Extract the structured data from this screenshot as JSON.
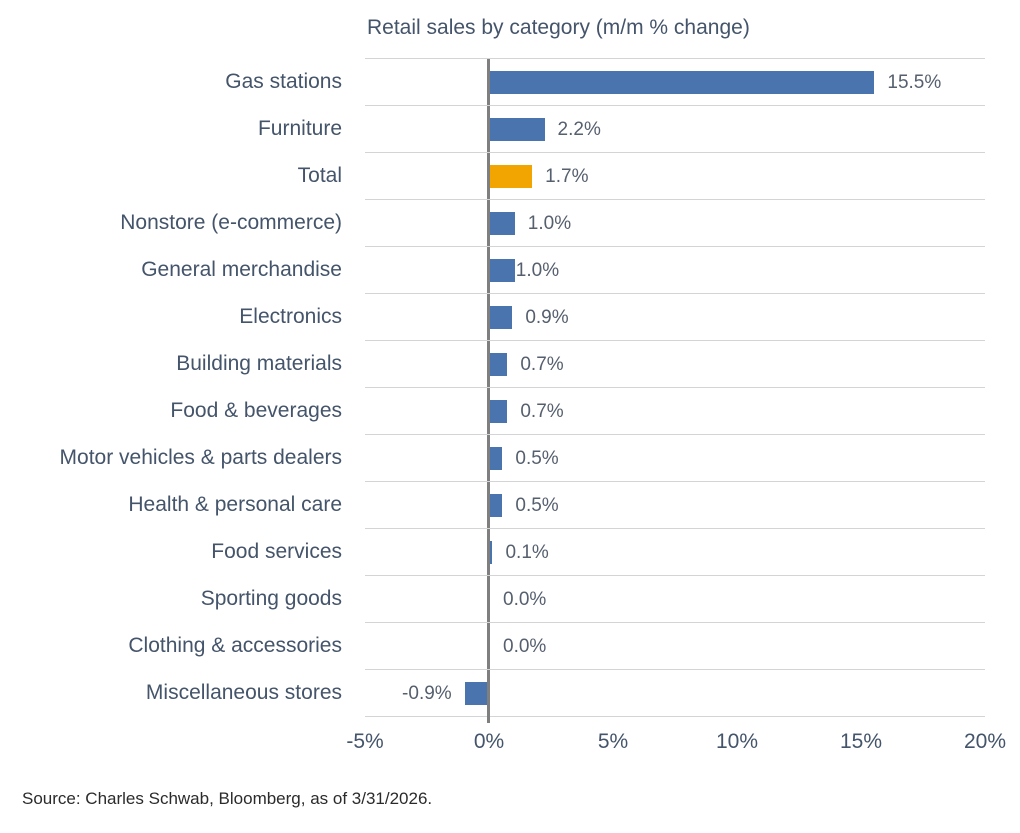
{
  "title": "Retail sales by category (m/m % change)",
  "source": "Source: Charles Schwab, Bloomberg, as of 3/31/2026.",
  "colors": {
    "bar_blue": "#4a74ad",
    "bar_highlight_orange": "#f2a500",
    "axis_text": "#44546a",
    "value_text": "#555f6e",
    "gridline": "#d2d4d6",
    "zero_line": "#7f7f7f"
  },
  "chart_data": {
    "type": "bar",
    "orientation": "horizontal",
    "title": "Retail sales by category (m/m % change)",
    "xlim": [
      -5,
      20
    ],
    "x_ticks": [
      "-5%",
      "0%",
      "5%",
      "10%",
      "15%",
      "20%"
    ],
    "x_tick_values": [
      -5,
      0,
      5,
      10,
      15,
      20
    ],
    "legend": "none",
    "grid": "horizontal row separator lines, gray vertical zero axis",
    "rows": [
      {
        "category": "Gas stations",
        "value": 15.5,
        "label": "15.5%"
      },
      {
        "category": "Furniture",
        "value": 2.2,
        "label": "2.2%"
      },
      {
        "category": "Total",
        "value": 1.7,
        "label": "1.7%",
        "highlight": true
      },
      {
        "category": "Nonstore (e-commerce)",
        "value": 1.0,
        "label": "1.0%"
      },
      {
        "category": "General merchandise",
        "value": 1.0,
        "label": "1.0%",
        "tight_label": true
      },
      {
        "category": "Electronics",
        "value": 0.9,
        "label": "0.9%"
      },
      {
        "category": "Building materials",
        "value": 0.7,
        "label": "0.7%"
      },
      {
        "category": "Food & beverages",
        "value": 0.7,
        "label": "0.7%"
      },
      {
        "category": "Motor vehicles & parts dealers",
        "value": 0.5,
        "label": "0.5%"
      },
      {
        "category": "Health & personal care",
        "value": 0.5,
        "label": "0.5%"
      },
      {
        "category": "Food services",
        "value": 0.1,
        "label": "0.1%"
      },
      {
        "category": "Sporting goods",
        "value": 0.0,
        "label": "0.0%"
      },
      {
        "category": "Clothing & accessories",
        "value": 0.0,
        "label": "0.0%"
      },
      {
        "category": "Miscellaneous stores",
        "value": -0.9,
        "label": "-0.9%"
      }
    ]
  }
}
